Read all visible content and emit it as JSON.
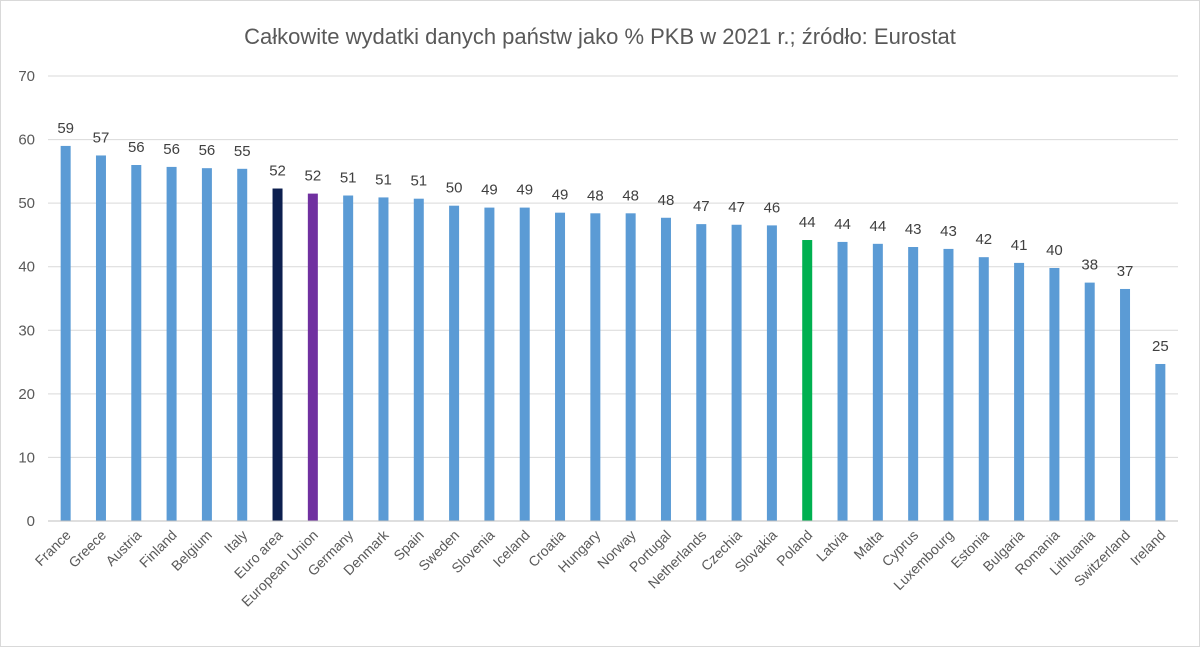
{
  "chart_data": {
    "type": "bar",
    "title": "Całkowite wydatki danych państw jako % PKB w 2021 r.; źródło: Eurostat",
    "xlabel": "",
    "ylabel": "",
    "ylim": [
      0,
      70
    ],
    "yticks": [
      0,
      10,
      20,
      30,
      40,
      50,
      60,
      70
    ],
    "grid": true,
    "legend": "none",
    "categories": [
      "France",
      "Greece",
      "Austria",
      "Finland",
      "Belgium",
      "Italy",
      "Euro area",
      "European Union",
      "Germany",
      "Denmark",
      "Spain",
      "Sweden",
      "Slovenia",
      "Iceland",
      "Croatia",
      "Hungary",
      "Norway",
      "Portugal",
      "Netherlands",
      "Czechia",
      "Slovakia",
      "Poland",
      "Latvia",
      "Malta",
      "Cyprus",
      "Luxembourg",
      "Estonia",
      "Bulgaria",
      "Romania",
      "Lithuania",
      "Switzerland",
      "Ireland"
    ],
    "values": [
      59.0,
      57.5,
      56.0,
      55.7,
      55.5,
      55.4,
      52.3,
      51.5,
      51.2,
      50.9,
      50.7,
      49.6,
      49.3,
      49.3,
      48.5,
      48.4,
      48.4,
      47.7,
      46.7,
      46.6,
      46.5,
      44.2,
      43.9,
      43.6,
      43.1,
      42.8,
      41.5,
      40.6,
      39.8,
      37.5,
      36.5,
      24.7
    ],
    "data_labels": [
      "59",
      "57",
      "56",
      "56",
      "56",
      "55",
      "52",
      "52",
      "51",
      "51",
      "51",
      "50",
      "49",
      "49",
      "49",
      "48",
      "48",
      "48",
      "47",
      "47",
      "46",
      "44",
      "44",
      "44",
      "43",
      "43",
      "42",
      "41",
      "40",
      "38",
      "37",
      "25"
    ],
    "colors": {
      "default": "#5b9bd5",
      "Euro area": "#0d1f4f",
      "European Union": "#7030a0",
      "Poland": "#00b050",
      "gridline": "#d9d9d9",
      "axis": "#bfbfbf"
    }
  }
}
